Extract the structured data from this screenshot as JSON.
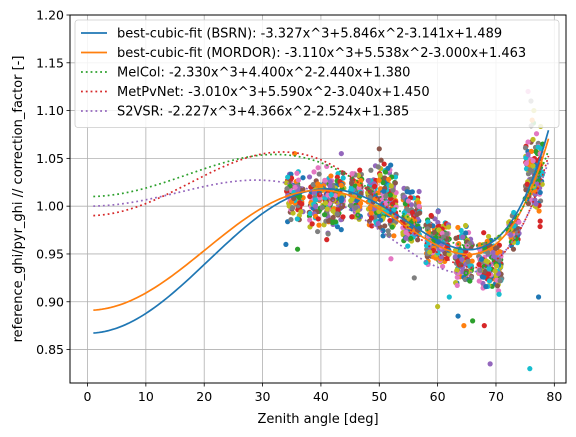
{
  "chart_data": {
    "type": "scatter",
    "title": "",
    "xlabel": "Zenith angle [deg]",
    "ylabel": "reference_ghi/pyr_ghi // correction_factor [-]",
    "xlim": [
      -3,
      82
    ],
    "ylim": [
      0.815,
      1.2
    ],
    "xticks": [
      "0",
      "10",
      "20",
      "30",
      "40",
      "50",
      "60",
      "70",
      "80"
    ],
    "xtick_values": [
      0,
      10,
      20,
      30,
      40,
      50,
      60,
      70,
      80
    ],
    "yticks": [
      "0.85",
      "0.90",
      "0.95",
      "1.00",
      "1.05",
      "1.10",
      "1.15",
      "1.20"
    ],
    "ytick_values": [
      0.85,
      0.9,
      0.95,
      1.0,
      1.05,
      1.1,
      1.15,
      1.2
    ],
    "grid": true,
    "legend_position": "top-left",
    "fits": [
      {
        "label": "best-cubic-fit (BSRN): -3.327x^3+5.846x^2-3.141x+1.489",
        "coeffs": [
          -3.327,
          5.846,
          -3.141,
          1.489
        ],
        "color": "#1f77b4",
        "style": "solid",
        "x_range": [
          1,
          79
        ]
      },
      {
        "label": "best-cubic-fit (MORDOR): -3.110x^3+5.538x^2-3.000x+1.463",
        "coeffs": [
          -3.11,
          5.538,
          -3.0,
          1.463
        ],
        "color": "#ff7f0e",
        "style": "solid",
        "x_range": [
          1,
          79
        ]
      },
      {
        "label": "MelCol: -2.330x^3+4.400x^2-2.440x+1.380",
        "coeffs": [
          -2.33,
          4.4,
          -2.44,
          1.38
        ],
        "color": "#2ca02c",
        "style": "dotted",
        "x_range": [
          1,
          79
        ]
      },
      {
        "label": "MetPvNet: -3.010x^3+5.590x^2-3.040x+1.450",
        "coeffs": [
          -3.01,
          5.59,
          -3.04,
          1.45
        ],
        "color": "#d62728",
        "style": "dotted",
        "x_range": [
          1,
          79
        ]
      },
      {
        "label": "S2VSR: -2.227x^3+4.366x^2-2.524x+1.385",
        "coeffs": [
          -2.227,
          4.366,
          -2.524,
          1.385
        ],
        "color": "#9467bd",
        "style": "dotted",
        "x_range": [
          1,
          79
        ]
      }
    ],
    "scatter": {
      "colors": [
        "#1f77b4",
        "#ff7f0e",
        "#2ca02c",
        "#d62728",
        "#9467bd",
        "#8c564b",
        "#e377c2",
        "#7f7f7f",
        "#bcbd22",
        "#17becf"
      ],
      "clusters": [
        {
          "x": [
            34,
            37
          ],
          "y": [
            0.975,
            1.045
          ],
          "n": 90
        },
        {
          "x": [
            38,
            44
          ],
          "y": [
            0.965,
            1.05
          ],
          "n": 210
        },
        {
          "x": [
            45,
            47
          ],
          "y": [
            0.98,
            1.045
          ],
          "n": 110
        },
        {
          "x": [
            48,
            53
          ],
          "y": [
            0.955,
            1.055
          ],
          "n": 220
        },
        {
          "x": [
            54,
            57
          ],
          "y": [
            0.94,
            1.03
          ],
          "n": 130
        },
        {
          "x": [
            58,
            62
          ],
          "y": [
            0.925,
            1.0
          ],
          "n": 160
        },
        {
          "x": [
            63,
            66
          ],
          "y": [
            0.905,
            0.99
          ],
          "n": 110
        },
        {
          "x": [
            67,
            71
          ],
          "y": [
            0.895,
            0.985
          ],
          "n": 150
        },
        {
          "x": [
            72,
            74
          ],
          "y": [
            0.95,
            1.0
          ],
          "n": 50
        },
        {
          "x": [
            75,
            78
          ],
          "y": [
            0.97,
            1.1
          ],
          "n": 130
        }
      ],
      "outliers": [
        {
          "x": 34,
          "y": 0.96
        },
        {
          "x": 35.5,
          "y": 1.055
        },
        {
          "x": 36,
          "y": 0.955
        },
        {
          "x": 41,
          "y": 0.965
        },
        {
          "x": 43.5,
          "y": 1.055
        },
        {
          "x": 50,
          "y": 1.06
        },
        {
          "x": 52,
          "y": 0.945
        },
        {
          "x": 56,
          "y": 0.925
        },
        {
          "x": 60,
          "y": 0.895
        },
        {
          "x": 62,
          "y": 0.905
        },
        {
          "x": 63.5,
          "y": 0.885
        },
        {
          "x": 64.5,
          "y": 0.875
        },
        {
          "x": 66,
          "y": 0.88
        },
        {
          "x": 68,
          "y": 0.875
        },
        {
          "x": 69,
          "y": 0.835
        },
        {
          "x": 73,
          "y": 0.955
        },
        {
          "x": 75.5,
          "y": 1.12
        },
        {
          "x": 76,
          "y": 1.11
        },
        {
          "x": 76.5,
          "y": 1.1
        },
        {
          "x": 75.8,
          "y": 0.83
        },
        {
          "x": 77.3,
          "y": 0.905
        },
        {
          "x": 76.2,
          "y": 1.09
        },
        {
          "x": 78,
          "y": 1.065
        }
      ]
    }
  }
}
